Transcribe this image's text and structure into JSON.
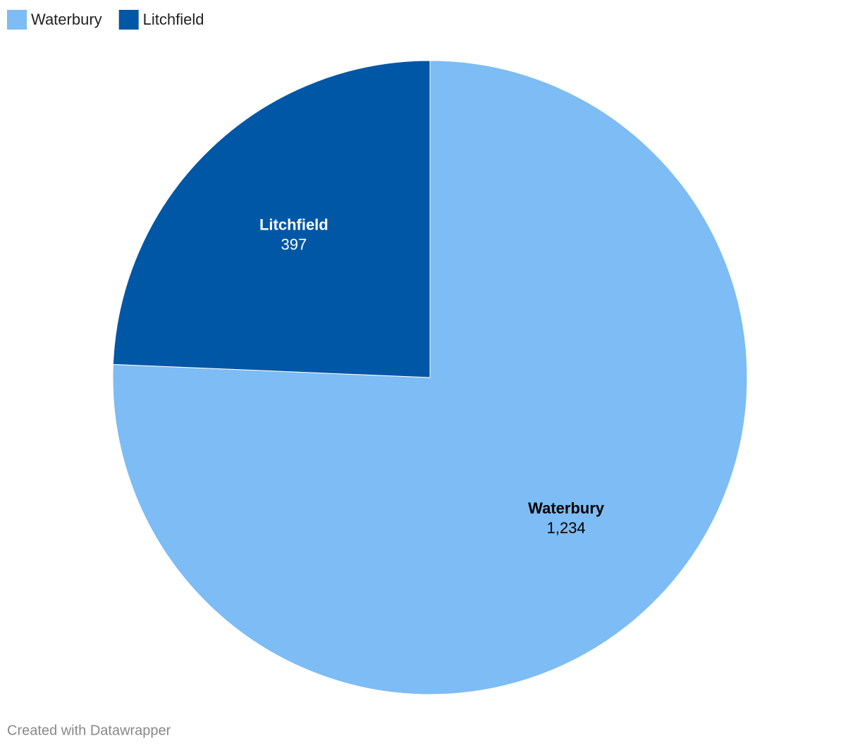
{
  "chart_data": {
    "type": "pie",
    "categories": [
      "Waterbury",
      "Litchfield"
    ],
    "values": [
      1234,
      397
    ],
    "value_labels": [
      "1,234",
      "397"
    ],
    "colors": [
      "#7dbcf4",
      "#0057a5"
    ],
    "label_colors": [
      "#000000",
      "#ffffff"
    ],
    "legend": "top-left",
    "credit": "Created with Datawrapper"
  }
}
